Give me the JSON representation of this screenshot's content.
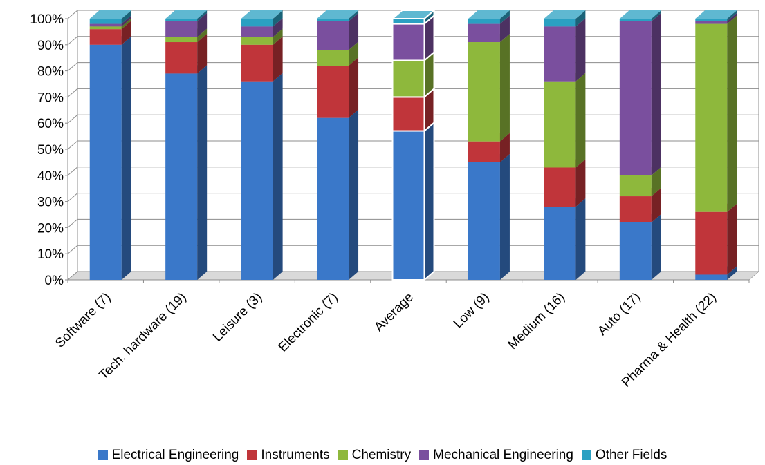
{
  "chart_data": {
    "type": "bar",
    "stacked": true,
    "categories": [
      "Software (7)",
      "Tech. hardware (19)",
      "Leisure (3)",
      "Electronic (7)",
      "Average",
      "Low (9)",
      "Medium (16)",
      "Auto (17)",
      "Pharma & Health (22)"
    ],
    "series": [
      {
        "name": "Electrical Engineering",
        "color": "#3a78c9",
        "values": [
          90,
          79,
          76,
          62,
          57,
          45,
          28,
          22,
          2
        ]
      },
      {
        "name": "Instruments",
        "color": "#c0353a",
        "values": [
          6,
          12,
          14,
          20,
          13,
          8,
          15,
          10,
          24
        ]
      },
      {
        "name": "Chemistry",
        "color": "#8eb83c",
        "values": [
          1,
          2,
          3,
          6,
          14,
          38,
          33,
          8,
          72
        ]
      },
      {
        "name": "Mechanical Engineering",
        "color": "#7a4f9e",
        "values": [
          1,
          6,
          4,
          11,
          14,
          7,
          21,
          59,
          1
        ]
      },
      {
        "name": "Other Fields",
        "color": "#2aa0c2",
        "values": [
          2,
          1,
          3,
          1,
          2,
          2,
          3,
          1,
          1
        ]
      }
    ],
    "yticks": [
      "0%",
      "10%",
      "20%",
      "30%",
      "40%",
      "50%",
      "60%",
      "70%",
      "80%",
      "90%",
      "100%"
    ],
    "ylim": [
      0,
      100
    ],
    "grid": true,
    "legend": "bottom",
    "highlight_category": "Average"
  }
}
